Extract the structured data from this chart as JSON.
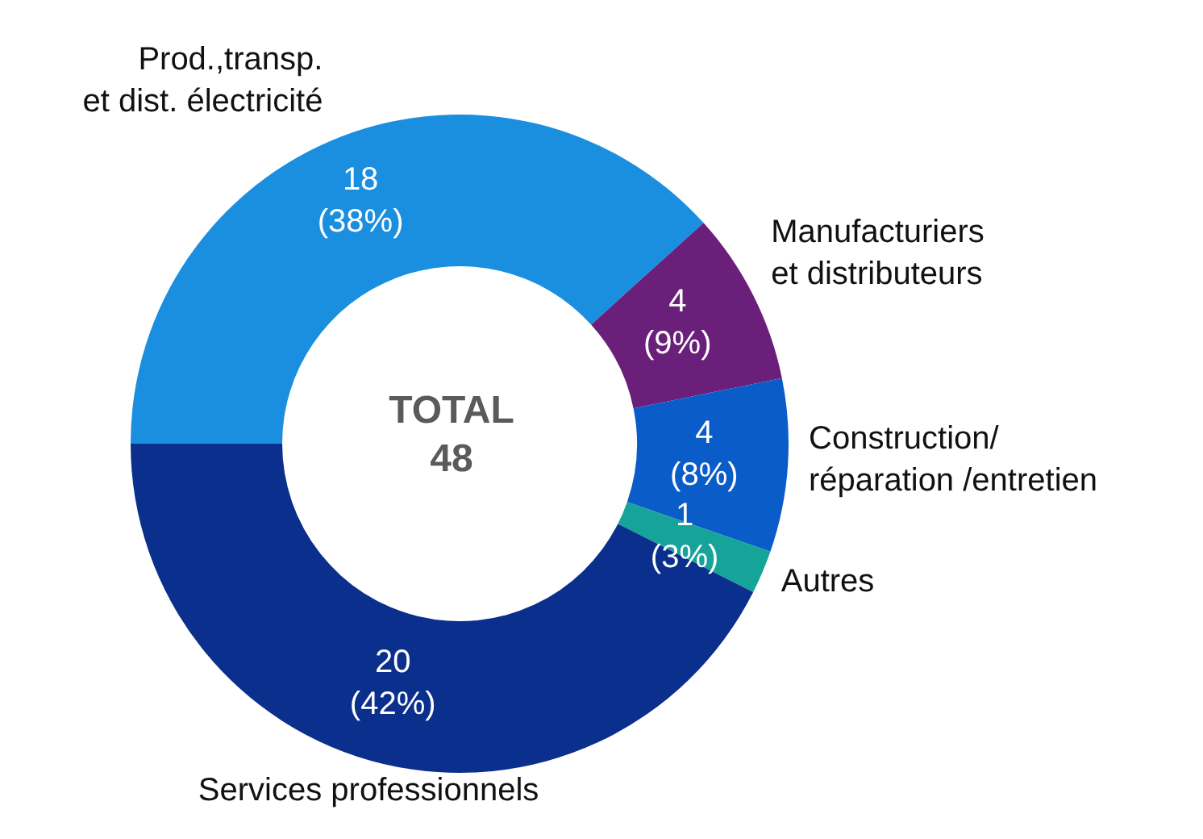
{
  "chart_data": {
    "type": "donut",
    "categories": [
      "Prod.,transp.\net dist. électricité",
      "Manufacturiers\net distributeurs",
      "Construction/\nréparation /entretien",
      "Autres",
      "Services professionnels"
    ],
    "values": [
      18,
      4,
      4,
      1,
      20
    ],
    "colors": [
      "#1a8fe0",
      "#6a1f7a",
      "#0a5cc9",
      "#16a39a",
      "#0a2f8c"
    ],
    "value_labels": [
      "18\n(38%)",
      "4\n(9%)",
      "4\n(8%)",
      "1\n(3%)",
      "20\n(42%)"
    ],
    "annotations": [
      "TOTAL\n48"
    ],
    "legend": false
  }
}
